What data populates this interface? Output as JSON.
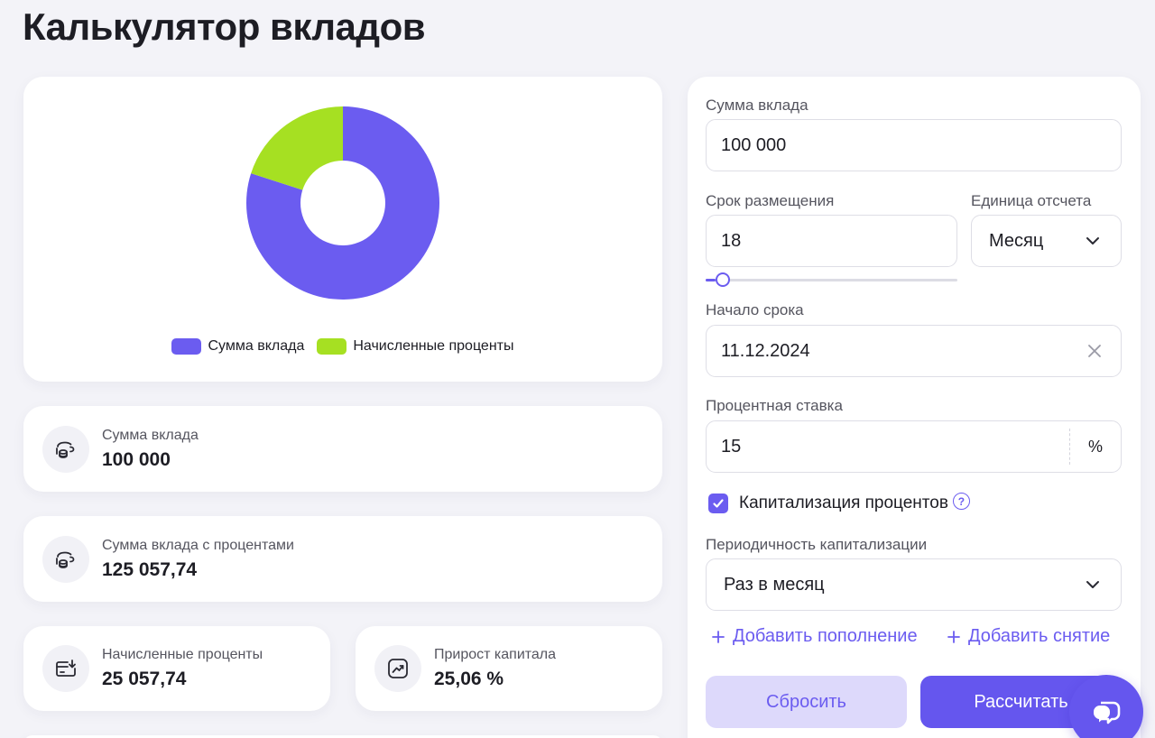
{
  "page": {
    "title": "Калькулятор вкладов"
  },
  "colors": {
    "accent": "#6b5cf0",
    "deposit": "#6b5cf0",
    "interest": "#a6e022"
  },
  "chart_data": {
    "type": "pie",
    "donut": true,
    "categories": [
      "Сумма вклада",
      "Начисленные проценты"
    ],
    "values": [
      100000,
      25057.74
    ],
    "colors": [
      "#6b5cf0",
      "#a6e022"
    ],
    "legend_position": "bottom"
  },
  "stats": {
    "deposit": {
      "label": "Сумма вклада",
      "value": "100 000",
      "icon": "coins-hand-icon"
    },
    "total": {
      "label": "Сумма вклада с процентами",
      "value": "125 057,74",
      "icon": "coins-hand-icon"
    },
    "interest": {
      "label": "Начисленные проценты",
      "value": "25 057,74",
      "icon": "card-download-icon"
    },
    "growth": {
      "label": "Прирост капитала",
      "value": "25,06 %",
      "icon": "trend-up-icon"
    }
  },
  "form": {
    "amount": {
      "label": "Сумма вклада",
      "value": "100 000"
    },
    "term": {
      "label": "Срок размещения",
      "value": "18",
      "slider_fraction": 0.04
    },
    "unit": {
      "label": "Единица отсчета",
      "value": "Месяц"
    },
    "start": {
      "label": "Начало срока",
      "value": "11.12.2024"
    },
    "rate": {
      "label": "Процентная ставка",
      "value": "15",
      "suffix": "%"
    },
    "capitalization": {
      "label": "Капитализация процентов",
      "checked": true,
      "help": "?"
    },
    "frequency": {
      "label": "Периодичность капитализации",
      "value": "Раз в месяц"
    },
    "add_deposit": "Добавить пополнение",
    "add_withdrawal": "Добавить снятие",
    "reset": "Сбросить",
    "calculate": "Рассчитать"
  }
}
